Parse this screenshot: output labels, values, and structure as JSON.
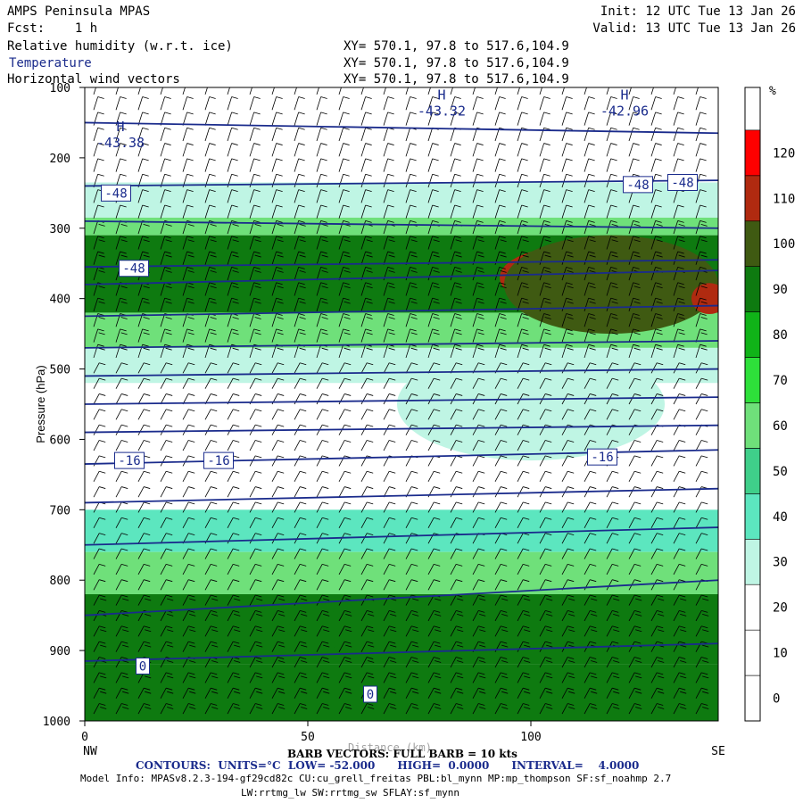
{
  "header": {
    "model": "AMPS Peninsula MPAS",
    "init": "Init: 12 UTC Tue 13 Jan 26",
    "fcst": "Fcst:    1 h",
    "valid": "Valid: 13 UTC Tue 13 Jan 26",
    "fields": [
      {
        "name": "Relative humidity (w.r.t. ice)",
        "xy": "XY= 570.1, 97.8 to 517.6,104.9",
        "color": "#000000"
      },
      {
        "name": "Temperature",
        "xy": "XY= 570.1, 97.8 to 517.6,104.9",
        "color": "#1a2b8c"
      },
      {
        "name": "Horizontal wind vectors",
        "xy": "XY= 570.1, 97.8 to 517.6,104.9",
        "color": "#000000"
      }
    ]
  },
  "chart_data": {
    "type": "heatmap",
    "ylabel": "Pressure (hPa)",
    "xlabel": "Distance (km)",
    "x_range": [
      0,
      142
    ],
    "y_range": [
      1000,
      100
    ],
    "y_scale": "linear-reversed",
    "x_ticks": [
      0,
      50,
      100
    ],
    "y_ticks": [
      100,
      200,
      300,
      400,
      500,
      600,
      700,
      800,
      900,
      1000
    ],
    "x_end_labels": {
      "left": "NW",
      "right": "SE"
    },
    "colorbar": {
      "unit": "%",
      "levels": [
        0,
        10,
        20,
        30,
        40,
        50,
        60,
        70,
        80,
        90,
        100,
        110,
        120
      ],
      "colors": [
        "#ffffff",
        "#ffffff",
        "#ffffff",
        "#bff5e4",
        "#5ce6bf",
        "#3fcf8a",
        "#6fe07a",
        "#2ee03a",
        "#10b318",
        "#0e7a10",
        "#3f5a12",
        "#b02a10",
        "#ff0000"
      ]
    },
    "rh_bands": [
      {
        "p_top": 100,
        "p_bot": 235,
        "rh": 10
      },
      {
        "p_top": 235,
        "p_bot": 285,
        "rh": 35
      },
      {
        "p_top": 285,
        "p_bot": 310,
        "rh": 65
      },
      {
        "p_top": 310,
        "p_bot": 420,
        "rh": 95
      },
      {
        "p_top": 420,
        "p_bot": 470,
        "rh": 65
      },
      {
        "p_top": 470,
        "p_bot": 520,
        "rh": 35
      },
      {
        "p_top": 520,
        "p_bot": 700,
        "rh": 15
      },
      {
        "p_top": 700,
        "p_bot": 760,
        "rh": 40
      },
      {
        "p_top": 760,
        "p_bot": 820,
        "rh": 60
      },
      {
        "p_top": 820,
        "p_bot": 920,
        "rh": 95
      },
      {
        "p_top": 920,
        "p_bot": 1000,
        "rh": 95
      }
    ],
    "rh_features": [
      {
        "x": 110,
        "p": 370,
        "dx": 17,
        "dp": 45,
        "rh": 115
      },
      {
        "x": 118,
        "p": 380,
        "dx": 24,
        "dp": 70,
        "rh": 105
      },
      {
        "x": 140,
        "p": 400,
        "dx": 4,
        "dp": 22,
        "rh": 115
      },
      {
        "x": 80,
        "p": 870,
        "dx": 35,
        "dp": 35,
        "rh": 95
      },
      {
        "x": 100,
        "p": 550,
        "dx": 30,
        "dp": 80,
        "rh": 35
      }
    ],
    "temperature_contours": {
      "units": "°C",
      "low": -52.0,
      "high": 0.0,
      "interval": 4.0,
      "lines": [
        {
          "value": -44,
          "p_left": 150,
          "p_right": 165
        },
        {
          "value": -48,
          "p_left": 240,
          "p_right": 232
        },
        {
          "value": -52,
          "p_left": 290,
          "p_right": 300
        },
        {
          "value": -48,
          "p_left": 355,
          "p_right": 345
        },
        {
          "value": -44,
          "p_left": 380,
          "p_right": 360
        },
        {
          "value": -40,
          "p_left": 425,
          "p_right": 410
        },
        {
          "value": -36,
          "p_left": 470,
          "p_right": 460
        },
        {
          "value": -32,
          "p_left": 510,
          "p_right": 500
        },
        {
          "value": -28,
          "p_left": 550,
          "p_right": 540
        },
        {
          "value": -24,
          "p_left": 590,
          "p_right": 580
        },
        {
          "value": -16,
          "p_left": 635,
          "p_right": 615
        },
        {
          "value": -12,
          "p_left": 690,
          "p_right": 670
        },
        {
          "value": -8,
          "p_left": 750,
          "p_right": 725
        },
        {
          "value": -4,
          "p_left": 850,
          "p_right": 800
        },
        {
          "value": 0,
          "p_left": 915,
          "p_right": 890
        }
      ],
      "labels": [
        {
          "text": "-48",
          "x": 7,
          "p": 250
        },
        {
          "text": "-48",
          "x": 11,
          "p": 357
        },
        {
          "text": "-16",
          "x": 10,
          "p": 630
        },
        {
          "text": "-16",
          "x": 30,
          "p": 630
        },
        {
          "text": "-16",
          "x": 116,
          "p": 625
        },
        {
          "text": "-48",
          "x": 124,
          "p": 238
        },
        {
          "text": "-48",
          "x": 134,
          "p": 235
        },
        {
          "text": "0",
          "x": 13,
          "p": 922
        },
        {
          "text": "0",
          "x": 64,
          "p": 962
        }
      ],
      "highs": [
        {
          "label": "H",
          "value": "-43.38",
          "x": 8,
          "p": 185
        },
        {
          "label": "H",
          "value": "-43.32",
          "x": 80,
          "p": 140
        },
        {
          "label": "H",
          "value": "-42.96",
          "x": 121,
          "p": 140
        }
      ]
    },
    "wind": {
      "full_barb": "10 kts"
    }
  },
  "footer": {
    "barb_line": "BARB VECTORS: FULL BARB = 10 kts",
    "axis_title_overlap": "Distance (km)",
    "contours": "CONTOURS:  UNITS=°C  LOW= -52.000      HIGH=  0.0000      INTERVAL=    4.0000",
    "model_info_1": "Model Info: MPASv8.2.3-194-gf29cd82c CU:cu_grell_freitas PBL:bl_mynn MP:mp_thompson SF:sf_noahmp 2.7",
    "model_info_2": "LW:rrtmg_lw SW:rrtmg_sw SFLAY:sf_mynn"
  }
}
